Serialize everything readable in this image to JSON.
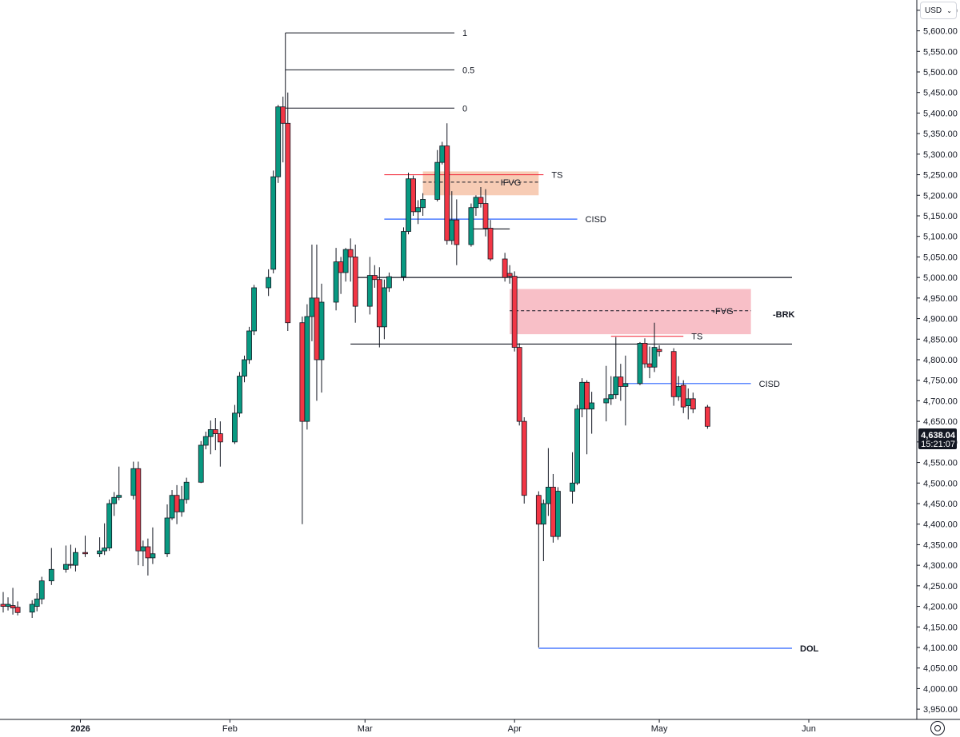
{
  "currency_selector": {
    "label": "USD",
    "chevron_icon": "chevron-down-icon"
  },
  "settings_icon": "settings-circle-icon",
  "price_label": {
    "price": "4,638.04",
    "countdown": "15:21:07",
    "bg": "#131722"
  },
  "colors": {
    "up": "#089981",
    "down": "#f23645",
    "wick": "#131722",
    "fvg_fill": "#f7b4bd",
    "ifvg_fill": "#f6c3a8",
    "cisd": "#2962ff",
    "ts": "#f23645"
  },
  "chart_data": {
    "type": "candlestick",
    "x_axis": {
      "labels": [
        {
          "label": "2026",
          "x": "2026-01-01",
          "bold": true
        },
        {
          "label": "Feb",
          "x": "2026-02-01",
          "bold": false
        },
        {
          "label": "Mar",
          "x": "2026-03-01",
          "bold": false
        },
        {
          "label": "Apr",
          "x": "2026-04-01",
          "bold": false
        },
        {
          "label": "May",
          "x": "2026-05-01",
          "bold": false
        },
        {
          "label": "Jun",
          "x": "2026-06-01",
          "bold": false
        }
      ]
    },
    "y_axis": {
      "min": 3925,
      "max": 5675,
      "ticks": [
        "5,650.00",
        "5,600.00",
        "5,550.00",
        "5,500.00",
        "5,450.00",
        "5,400.00",
        "5,350.00",
        "5,300.00",
        "5,250.00",
        "5,200.00",
        "5,150.00",
        "5,100.00",
        "5,050.00",
        "5,000.00",
        "4,950.00",
        "4,900.00",
        "4,850.00",
        "4,800.00",
        "4,750.00",
        "4,700.00",
        "4,650.00",
        "4,600.00",
        "4,550.00",
        "4,500.00",
        "4,450.00",
        "4,400.00",
        "4,350.00",
        "4,300.00",
        "4,250.00",
        "4,200.00",
        "4,150.00",
        "4,100.00",
        "4,050.00",
        "4,000.00",
        "3,950.00"
      ]
    },
    "candles": [
      {
        "d": "2025-12-16",
        "o": 4205,
        "h": 4235,
        "l": 4185,
        "c": 4200
      },
      {
        "d": "2025-12-17",
        "o": 4200,
        "h": 4222,
        "l": 4190,
        "c": 4205
      },
      {
        "d": "2025-12-18",
        "o": 4202,
        "h": 4245,
        "l": 4180,
        "c": 4196
      },
      {
        "d": "2025-12-19",
        "o": 4198,
        "h": 4212,
        "l": 4178,
        "c": 4185
      },
      {
        "d": "2025-12-22",
        "o": 4186,
        "h": 4215,
        "l": 4172,
        "c": 4205
      },
      {
        "d": "2025-12-23",
        "o": 4200,
        "h": 4232,
        "l": 4188,
        "c": 4218
      },
      {
        "d": "2025-12-24",
        "o": 4218,
        "h": 4272,
        "l": 4205,
        "c": 4262
      },
      {
        "d": "2025-12-26",
        "o": 4262,
        "h": 4342,
        "l": 4252,
        "c": 4290
      },
      {
        "d": "2025-12-29",
        "o": 4290,
        "h": 4348,
        "l": 4282,
        "c": 4302
      },
      {
        "d": "2025-12-30",
        "o": 4302,
        "h": 4350,
        "l": 4292,
        "c": 4300
      },
      {
        "d": "2025-12-31",
        "o": 4300,
        "h": 4342,
        "l": 4285,
        "c": 4331
      },
      {
        "d": "2026-01-02",
        "o": 4331,
        "h": 4372,
        "l": 4320,
        "c": 4328
      },
      {
        "d": "2026-01-05",
        "o": 4328,
        "h": 4368,
        "l": 4320,
        "c": 4335
      },
      {
        "d": "2026-01-06",
        "o": 4335,
        "h": 4402,
        "l": 4325,
        "c": 4342
      },
      {
        "d": "2026-01-07",
        "o": 4342,
        "h": 4460,
        "l": 4335,
        "c": 4450
      },
      {
        "d": "2026-01-08",
        "o": 4450,
        "h": 4478,
        "l": 4420,
        "c": 4465
      },
      {
        "d": "2026-01-09",
        "o": 4465,
        "h": 4540,
        "l": 4458,
        "c": 4470
      },
      {
        "d": "2026-01-12",
        "o": 4470,
        "h": 4552,
        "l": 4460,
        "c": 4535
      },
      {
        "d": "2026-01-13",
        "o": 4535,
        "h": 4552,
        "l": 4300,
        "c": 4335
      },
      {
        "d": "2026-01-14",
        "o": 4335,
        "h": 4360,
        "l": 4298,
        "c": 4345
      },
      {
        "d": "2026-01-15",
        "o": 4345,
        "h": 4365,
        "l": 4275,
        "c": 4318
      },
      {
        "d": "2026-01-16",
        "o": 4318,
        "h": 4392,
        "l": 4303,
        "c": 4328
      },
      {
        "d": "2026-01-19",
        "o": 4328,
        "h": 4448,
        "l": 4320,
        "c": 4415
      },
      {
        "d": "2026-01-20",
        "o": 4415,
        "h": 4483,
        "l": 4410,
        "c": 4470
      },
      {
        "d": "2026-01-21",
        "o": 4470,
        "h": 4495,
        "l": 4400,
        "c": 4430
      },
      {
        "d": "2026-01-22",
        "o": 4430,
        "h": 4493,
        "l": 4418,
        "c": 4460
      },
      {
        "d": "2026-01-23",
        "o": 4460,
        "h": 4513,
        "l": 4450,
        "c": 4502
      },
      {
        "d": "2026-01-26",
        "o": 4502,
        "h": 4602,
        "l": 4500,
        "c": 4592
      },
      {
        "d": "2026-01-27",
        "o": 4592,
        "h": 4625,
        "l": 4582,
        "c": 4613
      },
      {
        "d": "2026-01-28",
        "o": 4613,
        "h": 4652,
        "l": 4570,
        "c": 4630
      },
      {
        "d": "2026-01-29",
        "o": 4630,
        "h": 4658,
        "l": 4580,
        "c": 4620
      },
      {
        "d": "2026-01-30",
        "o": 4620,
        "h": 4650,
        "l": 4540,
        "c": 4600
      },
      {
        "d": "2026-02-02",
        "o": 4600,
        "h": 4690,
        "l": 4595,
        "c": 4670
      },
      {
        "d": "2026-02-03",
        "o": 4670,
        "h": 4770,
        "l": 4660,
        "c": 4760
      },
      {
        "d": "2026-02-04",
        "o": 4760,
        "h": 4810,
        "l": 4745,
        "c": 4800
      },
      {
        "d": "2026-02-05",
        "o": 4800,
        "h": 4880,
        "l": 4790,
        "c": 4870
      },
      {
        "d": "2026-02-06",
        "o": 4870,
        "h": 4982,
        "l": 4860,
        "c": 4975
      },
      {
        "d": "2026-02-09",
        "o": 4975,
        "h": 5020,
        "l": 4955,
        "c": 5000
      },
      {
        "d": "2026-02-10",
        "o": 5020,
        "h": 5260,
        "l": 5010,
        "c": 5245
      },
      {
        "d": "2026-02-11",
        "o": 5245,
        "h": 5420,
        "l": 5230,
        "c": 5415
      },
      {
        "d": "2026-02-12",
        "o": 5415,
        "h": 5440,
        "l": 5280,
        "c": 5375
      },
      {
        "d": "2026-02-13",
        "o": 5375,
        "h": 5450,
        "l": 4870,
        "c": 4890
      },
      {
        "d": "2026-02-16",
        "o": 4890,
        "h": 4905,
        "l": 4400,
        "c": 4650
      },
      {
        "d": "2026-02-17",
        "o": 4650,
        "h": 4935,
        "l": 4630,
        "c": 4905
      },
      {
        "d": "2026-02-18",
        "o": 4905,
        "h": 5080,
        "l": 4845,
        "c": 4950
      },
      {
        "d": "2026-02-19",
        "o": 4950,
        "h": 5080,
        "l": 4700,
        "c": 4800
      },
      {
        "d": "2026-02-20",
        "o": 4800,
        "h": 4985,
        "l": 4720,
        "c": 4940
      },
      {
        "d": "2026-02-23",
        "o": 4940,
        "h": 5072,
        "l": 4920,
        "c": 5038
      },
      {
        "d": "2026-02-24",
        "o": 5038,
        "h": 5050,
        "l": 4960,
        "c": 5012
      },
      {
        "d": "2026-02-25",
        "o": 5012,
        "h": 5072,
        "l": 4990,
        "c": 5068
      },
      {
        "d": "2026-02-26",
        "o": 5068,
        "h": 5095,
        "l": 4990,
        "c": 5050
      },
      {
        "d": "2026-02-27",
        "o": 5050,
        "h": 5080,
        "l": 4890,
        "c": 4930
      },
      {
        "d": "2026-03-02",
        "o": 4930,
        "h": 5050,
        "l": 4910,
        "c": 5005
      },
      {
        "d": "2026-03-03",
        "o": 5005,
        "h": 5030,
        "l": 4975,
        "c": 4995
      },
      {
        "d": "2026-03-04",
        "o": 4995,
        "h": 5025,
        "l": 4830,
        "c": 4880
      },
      {
        "d": "2026-03-05",
        "o": 4880,
        "h": 4995,
        "l": 4850,
        "c": 4975
      },
      {
        "d": "2026-03-06",
        "o": 4975,
        "h": 5012,
        "l": 4965,
        "c": 5002
      },
      {
        "d": "2026-03-09",
        "o": 5002,
        "h": 5122,
        "l": 4992,
        "c": 5112
      },
      {
        "d": "2026-03-10",
        "o": 5112,
        "h": 5255,
        "l": 5105,
        "c": 5240
      },
      {
        "d": "2026-03-11",
        "o": 5240,
        "h": 5248,
        "l": 5150,
        "c": 5160
      },
      {
        "d": "2026-03-12",
        "o": 5160,
        "h": 5188,
        "l": 5130,
        "c": 5170
      },
      {
        "d": "2026-03-13",
        "o": 5170,
        "h": 5205,
        "l": 5150,
        "c": 5190
      },
      {
        "d": "2026-03-16",
        "o": 5190,
        "h": 5310,
        "l": 5185,
        "c": 5280
      },
      {
        "d": "2026-03-17",
        "o": 5280,
        "h": 5330,
        "l": 5275,
        "c": 5320
      },
      {
        "d": "2026-03-18",
        "o": 5320,
        "h": 5375,
        "l": 5080,
        "c": 5090
      },
      {
        "d": "2026-03-19",
        "o": 5090,
        "h": 5210,
        "l": 5080,
        "c": 5140
      },
      {
        "d": "2026-03-20",
        "o": 5140,
        "h": 5190,
        "l": 5030,
        "c": 5080
      },
      {
        "d": "2026-03-23",
        "o": 5080,
        "h": 5180,
        "l": 5075,
        "c": 5170
      },
      {
        "d": "2026-03-24",
        "o": 5170,
        "h": 5200,
        "l": 5150,
        "c": 5195
      },
      {
        "d": "2026-03-25",
        "o": 5195,
        "h": 5220,
        "l": 5170,
        "c": 5180
      },
      {
        "d": "2026-03-26",
        "o": 5180,
        "h": 5215,
        "l": 5100,
        "c": 5120
      },
      {
        "d": "2026-03-27",
        "o": 5120,
        "h": 5140,
        "l": 5040,
        "c": 5045
      },
      {
        "d": "2026-03-30",
        "o": 5045,
        "h": 5060,
        "l": 4990,
        "c": 5000
      },
      {
        "d": "2026-03-31",
        "o": 5010,
        "h": 5030,
        "l": 4985,
        "c": 5003
      },
      {
        "d": "2026-04-01",
        "o": 5003,
        "h": 5015,
        "l": 4820,
        "c": 4830
      },
      {
        "d": "2026-04-02",
        "o": 4830,
        "h": 4840,
        "l": 4640,
        "c": 4650
      },
      {
        "d": "2026-04-03",
        "o": 4650,
        "h": 4660,
        "l": 4450,
        "c": 4470
      },
      {
        "d": "2026-04-06",
        "o": 4470,
        "h": 4480,
        "l": 4100,
        "c": 4400
      },
      {
        "d": "2026-04-07",
        "o": 4400,
        "h": 4460,
        "l": 4310,
        "c": 4450
      },
      {
        "d": "2026-04-08",
        "o": 4450,
        "h": 4585,
        "l": 4420,
        "c": 4490
      },
      {
        "d": "2026-04-09",
        "o": 4490,
        "h": 4522,
        "l": 4355,
        "c": 4370
      },
      {
        "d": "2026-04-10",
        "o": 4370,
        "h": 4490,
        "l": 4362,
        "c": 4480
      },
      {
        "d": "2026-04-13",
        "o": 4480,
        "h": 4575,
        "l": 4450,
        "c": 4500
      },
      {
        "d": "2026-04-14",
        "o": 4500,
        "h": 4690,
        "l": 4495,
        "c": 4680
      },
      {
        "d": "2026-04-15",
        "o": 4680,
        "h": 4755,
        "l": 4660,
        "c": 4745
      },
      {
        "d": "2026-04-16",
        "o": 4745,
        "h": 4750,
        "l": 4570,
        "c": 4680
      },
      {
        "d": "2026-04-17",
        "o": 4680,
        "h": 4722,
        "l": 4620,
        "c": 4695
      },
      {
        "d": "2026-04-20",
        "o": 4695,
        "h": 4785,
        "l": 4650,
        "c": 4705
      },
      {
        "d": "2026-04-21",
        "o": 4705,
        "h": 4760,
        "l": 4690,
        "c": 4715
      },
      {
        "d": "2026-04-22",
        "o": 4715,
        "h": 4855,
        "l": 4705,
        "c": 4758
      },
      {
        "d": "2026-04-23",
        "o": 4758,
        "h": 4790,
        "l": 4700,
        "c": 4735
      },
      {
        "d": "2026-04-24",
        "o": 4735,
        "h": 4810,
        "l": 4640,
        "c": 4742
      },
      {
        "d": "2026-04-27",
        "o": 4742,
        "h": 4843,
        "l": 4738,
        "c": 4840
      },
      {
        "d": "2026-04-28",
        "o": 4840,
        "h": 4852,
        "l": 4780,
        "c": 4790
      },
      {
        "d": "2026-04-29",
        "o": 4790,
        "h": 4832,
        "l": 4755,
        "c": 4782
      },
      {
        "d": "2026-04-30",
        "o": 4782,
        "h": 4890,
        "l": 4770,
        "c": 4830
      },
      {
        "d": "2026-05-01",
        "o": 4825,
        "h": 4835,
        "l": 4808,
        "c": 4820
      },
      {
        "d": "2026-05-04",
        "o": 4820,
        "h": 4828,
        "l": 4688,
        "c": 4710
      },
      {
        "d": "2026-05-05",
        "o": 4710,
        "h": 4760,
        "l": 4700,
        "c": 4735
      },
      {
        "d": "2026-05-06",
        "o": 4738,
        "h": 4750,
        "l": 4670,
        "c": 4685
      },
      {
        "d": "2026-05-07",
        "o": 4688,
        "h": 4730,
        "l": 4655,
        "c": 4705
      },
      {
        "d": "2026-05-08",
        "o": 4705,
        "h": 4720,
        "l": 4670,
        "c": 4680
      },
      {
        "d": "2026-05-11",
        "o": 4685,
        "h": 4690,
        "l": 4632,
        "c": 4638
      }
    ],
    "annotations": {
      "fib": [
        {
          "label": "1",
          "y": 5595
        },
        {
          "label": "0.5",
          "y": 5505
        },
        {
          "label": "0",
          "y": 5412
        }
      ],
      "fib_start": "2026-02-12",
      "fib_end": "2026-05-01",
      "hlines": [
        {
          "y": 5000,
          "from": "2026-02-27",
          "to": "2026-06-30",
          "color": "#131722",
          "label": ""
        },
        {
          "y": 4838,
          "from": "2026-02-26",
          "to": "2026-06-30",
          "color": "#131722",
          "label": ""
        },
        {
          "y": 5142,
          "from": "2026-03-05",
          "to": "2026-04-14",
          "color": "#2962ff",
          "label": "CISD"
        },
        {
          "y": 4742,
          "from": "2026-04-23",
          "to": "2026-05-20",
          "color": "#2962ff",
          "label": "CISD"
        },
        {
          "y": 4098,
          "from": "2026-04-06",
          "to": "2026-06-30",
          "color": "#2962ff",
          "label": "DOL"
        },
        {
          "y": 5250,
          "from": "2026-03-05",
          "to": "2026-04-07",
          "color": "#f23645",
          "label": "TS"
        },
        {
          "y": 4857,
          "from": "2026-04-21",
          "to": "2026-05-06",
          "color": "#f23645",
          "label": "TS"
        },
        {
          "y": 5118,
          "from": "2026-03-23",
          "to": "2026-03-31",
          "color": "#131722",
          "label": ""
        }
      ],
      "zones": [
        {
          "label": "IFVG",
          "top": 5258,
          "bottom": 5200,
          "from": "2026-03-13",
          "to": "2026-04-06",
          "fill": "#f6c3a8",
          "mid": 5232
        },
        {
          "label": "-FVG",
          "top": 4972,
          "bottom": 4862,
          "from": "2026-03-31",
          "to": "2026-05-20",
          "fill": "#f7b4bd",
          "mid": 4919
        }
      ],
      "brk_label": "-BRK",
      "brk_y": 4911
    }
  }
}
